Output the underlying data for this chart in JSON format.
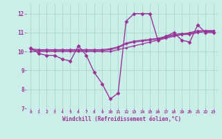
{
  "background_color": "#cceee8",
  "grid_color": "#aaddcc",
  "line_color": "#993399",
  "marker_color": "#993399",
  "xlabel": "Windchill (Refroidissement éolien,°C)",
  "xlim": [
    -0.5,
    23.5
  ],
  "ylim": [
    7,
    12.5
  ],
  "yticks": [
    7,
    8,
    9,
    10,
    11,
    12
  ],
  "xticks": [
    0,
    1,
    2,
    3,
    4,
    5,
    6,
    7,
    8,
    9,
    10,
    11,
    12,
    13,
    14,
    15,
    16,
    17,
    18,
    19,
    20,
    21,
    22,
    23
  ],
  "series": [
    [
      10.2,
      9.9,
      9.8,
      9.8,
      9.6,
      9.5,
      10.3,
      9.8,
      8.9,
      8.3,
      7.5,
      7.8,
      11.6,
      12.0,
      12.0,
      12.0,
      10.6,
      10.8,
      11.0,
      10.6,
      10.5,
      11.4,
      11.0,
      11.0
    ],
    [
      10.0,
      10.0,
      10.0,
      10.0,
      10.0,
      10.0,
      10.0,
      10.0,
      10.0,
      10.0,
      10.0,
      10.1,
      10.2,
      10.3,
      10.4,
      10.5,
      10.6,
      10.7,
      10.8,
      10.9,
      11.0,
      11.1,
      11.1,
      11.1
    ],
    [
      10.1,
      10.05,
      10.05,
      10.05,
      10.05,
      10.05,
      10.05,
      10.05,
      10.05,
      10.05,
      10.1,
      10.2,
      10.4,
      10.5,
      10.55,
      10.6,
      10.65,
      10.75,
      10.85,
      10.9,
      10.9,
      11.0,
      11.05,
      11.05
    ],
    [
      10.15,
      10.1,
      10.1,
      10.1,
      10.1,
      10.1,
      10.1,
      10.1,
      10.1,
      10.1,
      10.15,
      10.25,
      10.45,
      10.55,
      10.6,
      10.65,
      10.7,
      10.8,
      10.9,
      10.95,
      10.95,
      11.05,
      11.1,
      11.1
    ]
  ]
}
